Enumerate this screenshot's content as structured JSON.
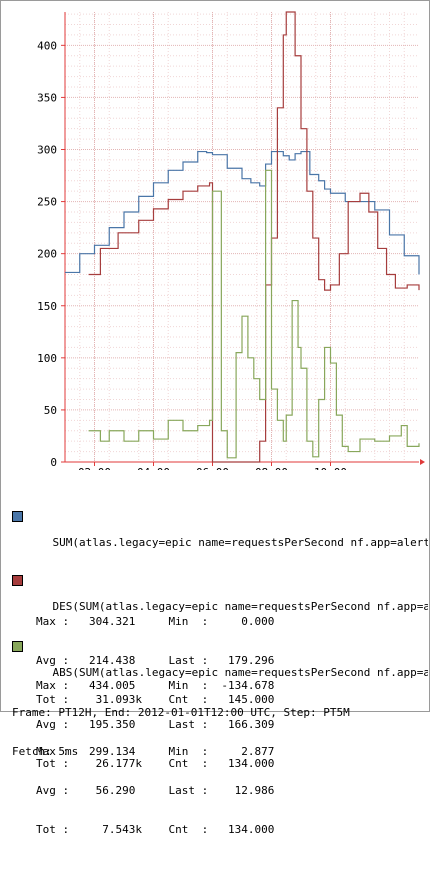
{
  "chart_data": {
    "type": "line",
    "x_ticks": [
      "02:00",
      "04:00",
      "06:00",
      "08:00",
      "10:00"
    ],
    "y_ticks": [
      0,
      50,
      100,
      150,
      200,
      250,
      300,
      350,
      400
    ],
    "ylim": [
      0,
      432
    ],
    "xlim_hours": [
      0,
      12
    ],
    "grid": true,
    "series": [
      {
        "name": "SUM(atlas.legacy=epic name=requestsPerSecond nf.app=alerttest nf.asg",
        "color": "#4a76a8",
        "step": true,
        "points": [
          [
            0.0,
            182
          ],
          [
            0.5,
            200
          ],
          [
            1.0,
            208
          ],
          [
            1.5,
            225
          ],
          [
            2.0,
            240
          ],
          [
            2.5,
            255
          ],
          [
            3.0,
            268
          ],
          [
            3.5,
            280
          ],
          [
            4.0,
            288
          ],
          [
            4.5,
            298
          ],
          [
            4.8,
            297
          ],
          [
            5.0,
            295
          ],
          [
            5.5,
            282
          ],
          [
            6.0,
            272
          ],
          [
            6.3,
            268
          ],
          [
            6.6,
            265
          ],
          [
            6.8,
            286
          ],
          [
            7.0,
            298
          ],
          [
            7.4,
            294
          ],
          [
            7.6,
            290
          ],
          [
            7.8,
            296
          ],
          [
            8.0,
            298
          ],
          [
            8.3,
            276
          ],
          [
            8.6,
            270
          ],
          [
            8.8,
            262
          ],
          [
            9.0,
            258
          ],
          [
            9.5,
            250
          ],
          [
            10.0,
            250
          ],
          [
            10.5,
            242
          ],
          [
            11.0,
            218
          ],
          [
            11.5,
            198
          ],
          [
            12.0,
            180
          ]
        ]
      },
      {
        "name": "DES(SUM(atlas.legacy=epic name=requestsPerSecond nf.app=alerttest nf",
        "color": "#a63d3d",
        "step": true,
        "points": [
          [
            0.8,
            180
          ],
          [
            1.2,
            205
          ],
          [
            1.8,
            220
          ],
          [
            2.5,
            232
          ],
          [
            3.0,
            243
          ],
          [
            3.5,
            252
          ],
          [
            4.0,
            260
          ],
          [
            4.5,
            265
          ],
          [
            4.9,
            268
          ],
          [
            5.0,
            -5
          ],
          [
            6.1,
            -5
          ],
          [
            6.5,
            -10
          ],
          [
            6.6,
            20
          ],
          [
            6.8,
            170
          ],
          [
            7.0,
            215
          ],
          [
            7.2,
            340
          ],
          [
            7.4,
            410
          ],
          [
            7.5,
            432
          ],
          [
            7.7,
            432
          ],
          [
            7.8,
            390
          ],
          [
            8.0,
            320
          ],
          [
            8.2,
            260
          ],
          [
            8.4,
            215
          ],
          [
            8.6,
            175
          ],
          [
            8.8,
            165
          ],
          [
            9.0,
            170
          ],
          [
            9.3,
            200
          ],
          [
            9.6,
            250
          ],
          [
            10.0,
            258
          ],
          [
            10.3,
            240
          ],
          [
            10.6,
            205
          ],
          [
            10.9,
            180
          ],
          [
            11.2,
            167
          ],
          [
            11.6,
            170
          ],
          [
            12.0,
            165
          ]
        ]
      },
      {
        "name": "ABS(SUM(atlas.legacy=epic name=requestsPerSecond nf.app=alerttest nf",
        "color": "#88a75b",
        "step": true,
        "points": [
          [
            0.8,
            30
          ],
          [
            1.2,
            20
          ],
          [
            1.5,
            30
          ],
          [
            2.0,
            20
          ],
          [
            2.5,
            30
          ],
          [
            3.0,
            22
          ],
          [
            3.5,
            40
          ],
          [
            4.0,
            30
          ],
          [
            4.5,
            35
          ],
          [
            4.9,
            40
          ],
          [
            5.0,
            260
          ],
          [
            5.3,
            30
          ],
          [
            5.5,
            4
          ],
          [
            5.8,
            105
          ],
          [
            6.0,
            140
          ],
          [
            6.2,
            100
          ],
          [
            6.4,
            80
          ],
          [
            6.6,
            60
          ],
          [
            6.8,
            280
          ],
          [
            7.0,
            70
          ],
          [
            7.2,
            40
          ],
          [
            7.4,
            20
          ],
          [
            7.5,
            45
          ],
          [
            7.7,
            155
          ],
          [
            7.9,
            110
          ],
          [
            8.0,
            90
          ],
          [
            8.2,
            20
          ],
          [
            8.4,
            5
          ],
          [
            8.6,
            60
          ],
          [
            8.8,
            110
          ],
          [
            9.0,
            95
          ],
          [
            9.2,
            45
          ],
          [
            9.4,
            15
          ],
          [
            9.6,
            10
          ],
          [
            10.0,
            22
          ],
          [
            10.5,
            20
          ],
          [
            11.0,
            25
          ],
          [
            11.4,
            35
          ],
          [
            11.6,
            15
          ],
          [
            12.0,
            18
          ]
        ]
      }
    ]
  },
  "legend": [
    {
      "swatch": "#4a76a8",
      "title": "SUM(atlas.legacy=epic name=requestsPerSecond nf.app=alerttest nf.asg",
      "rows": [
        "Max :   304.321     Min  :     0.000",
        "Avg :   214.438     Last :   179.296",
        "Tot :    31.093k    Cnt  :   145.000"
      ]
    },
    {
      "swatch": "#a63d3d",
      "title": "DES(SUM(atlas.legacy=epic name=requestsPerSecond nf.app=alerttest nf",
      "rows": [
        "Max :   434.005     Min  :  -134.678",
        "Avg :   195.350     Last :   166.309",
        "Tot :    26.177k    Cnt  :   134.000"
      ]
    },
    {
      "swatch": "#88a75b",
      "title": "ABS(SUM(atlas.legacy=epic name=requestsPerSecond nf.app=alerttest nf",
      "rows": [
        "Max :   299.134     Min  :     2.877",
        "Avg :    56.290     Last :    12.986",
        "Tot :     7.543k    Cnt  :   134.000"
      ]
    }
  ],
  "footer": {
    "line1": "Frame: PT12H, End: 2012-01-01T12:00 UTC, Step: PT5M",
    "line2": "Fetch: 5ms"
  }
}
